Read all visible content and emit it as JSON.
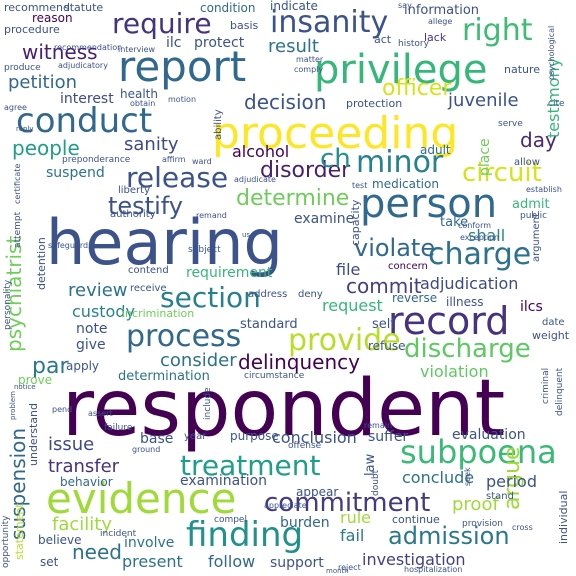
{
  "words": [
    {
      "t": "respondent",
      "c": "#440154"
    },
    {
      "t": "hearing",
      "c": "#3b528b"
    },
    {
      "t": "proceeding",
      "c": "#fde725"
    },
    {
      "t": "report",
      "c": "#31688e"
    },
    {
      "t": "privilege",
      "c": "#35b779"
    },
    {
      "t": "evidence",
      "c": "#a0da39"
    },
    {
      "t": "person",
      "c": "#31688e"
    },
    {
      "t": "record",
      "c": "#46327e"
    },
    {
      "t": "conduct",
      "c": "#31688e"
    },
    {
      "t": "finding",
      "c": "#21918c"
    },
    {
      "t": "subpoena",
      "c": "#3aba76"
    },
    {
      "t": "treatment",
      "c": "#1f9e89"
    },
    {
      "t": "require",
      "c": "#46327e"
    },
    {
      "t": "insanity",
      "c": "#3b528b"
    },
    {
      "t": "right",
      "c": "#3fbc73"
    },
    {
      "t": "provide",
      "c": "#b8de29"
    },
    {
      "t": "process",
      "c": "#31688e"
    },
    {
      "t": "section",
      "c": "#27808e"
    },
    {
      "t": "commitment",
      "c": "#443983"
    },
    {
      "t": "charge",
      "c": "#2c728e"
    },
    {
      "t": "minor",
      "c": "#26828e"
    },
    {
      "t": "release",
      "c": "#3b528b"
    },
    {
      "t": "discharge",
      "c": "#5ec962"
    },
    {
      "t": "admission",
      "c": "#2a788e"
    },
    {
      "t": "circuit",
      "c": "#d8e219"
    },
    {
      "t": "violate",
      "c": "#31688e"
    },
    {
      "t": "determine",
      "c": "#6ece58"
    },
    {
      "t": "testify",
      "c": "#3b528b"
    },
    {
      "t": "disorder",
      "c": "#481f70"
    },
    {
      "t": "ch",
      "c": "#21918c"
    },
    {
      "t": "people",
      "c": "#1f9e89"
    },
    {
      "t": "sanity",
      "c": "#3e4989"
    },
    {
      "t": "decision",
      "c": "#3b528b"
    },
    {
      "t": "officer",
      "c": "#d8e219"
    },
    {
      "t": "juvenile",
      "c": "#3b528b"
    },
    {
      "t": "commit",
      "c": "#424086"
    },
    {
      "t": "adjudication",
      "c": "#3e4989"
    },
    {
      "t": "delinquency",
      "c": "#440154"
    },
    {
      "t": "consider",
      "c": "#2c728e"
    },
    {
      "t": "review",
      "c": "#2c728e"
    },
    {
      "t": "custody",
      "c": "#26828e"
    },
    {
      "t": "witness",
      "c": "#481f70"
    },
    {
      "t": "petition",
      "c": "#31688e"
    },
    {
      "t": "psychiatrist",
      "c": "#6ece58"
    },
    {
      "t": "suspension",
      "c": "#31688e"
    },
    {
      "t": "par",
      "c": "#2a788e"
    },
    {
      "t": "issue",
      "c": "#3e4989"
    },
    {
      "t": "transfer",
      "c": "#46327e"
    },
    {
      "t": "facility",
      "c": "#9fda3a"
    },
    {
      "t": "need",
      "c": "#2c728e"
    },
    {
      "t": "argue",
      "c": "#a0da39"
    },
    {
      "t": "investigation",
      "c": "#424086"
    },
    {
      "t": "file",
      "c": "#3e4989"
    },
    {
      "t": "shall",
      "c": "#26828e"
    },
    {
      "t": "request",
      "c": "#35b779"
    },
    {
      "t": "day",
      "c": "#482878"
    },
    {
      "t": "testimony",
      "c": "#35b779"
    },
    {
      "t": "alcohol",
      "c": "#440154"
    },
    {
      "t": "interest",
      "c": "#3e4989"
    },
    {
      "t": "result",
      "c": "#2c728e"
    },
    {
      "t": "violation",
      "c": "#5ec962"
    },
    {
      "t": "conclusion",
      "c": "#3b528b"
    },
    {
      "t": "evaluation",
      "c": "#3b528b"
    },
    {
      "t": "period",
      "c": "#3b528b"
    },
    {
      "t": "conclude",
      "c": "#2c728e"
    },
    {
      "t": "proof",
      "c": "#9fda3a"
    },
    {
      "t": "rule",
      "c": "#9fda3a"
    },
    {
      "t": "fail",
      "c": "#2a788e"
    },
    {
      "t": "burden",
      "c": "#31688e"
    },
    {
      "t": "follow",
      "c": "#31688e"
    },
    {
      "t": "present",
      "c": "#2c728e"
    },
    {
      "t": "support",
      "c": "#3b528b"
    },
    {
      "t": "involve",
      "c": "#2c728e"
    },
    {
      "t": "examination",
      "c": "#3b528b"
    },
    {
      "t": "behavior",
      "c": "#31688e"
    },
    {
      "t": "base",
      "c": "#3b528b"
    },
    {
      "t": "reason",
      "c": "#440154"
    },
    {
      "t": "procedure",
      "c": "#3b528b"
    },
    {
      "t": "recommend",
      "c": "#3b528b"
    },
    {
      "t": "statute",
      "c": "#3b528b"
    },
    {
      "t": "condition",
      "c": "#31688e"
    },
    {
      "t": "indicate",
      "c": "#3b528b"
    },
    {
      "t": "information",
      "c": "#3b528b"
    },
    {
      "t": "ilc",
      "c": "#3b528b"
    },
    {
      "t": "protect",
      "c": "#3b528b"
    },
    {
      "t": "act",
      "c": "#3b528b"
    },
    {
      "t": "history",
      "c": "#3b528b"
    },
    {
      "t": "lack",
      "c": "#46327e"
    },
    {
      "t": "nature",
      "c": "#3b528b"
    },
    {
      "t": "place",
      "c": "#6ece58"
    },
    {
      "t": "allow",
      "c": "#3b528b"
    },
    {
      "t": "adult",
      "c": "#31688e"
    },
    {
      "t": "suspend",
      "c": "#2c728e"
    },
    {
      "t": "examine",
      "c": "#3b528b"
    },
    {
      "t": "take",
      "c": "#31688e"
    },
    {
      "t": "admit",
      "c": "#35b779"
    },
    {
      "t": "medication",
      "c": "#31688e"
    },
    {
      "t": "capacity",
      "c": "#3b528b"
    },
    {
      "t": "requirement",
      "c": "#35b779"
    },
    {
      "t": "detention",
      "c": "#3b528b"
    },
    {
      "t": "concern",
      "c": "#440154"
    },
    {
      "t": "reverse",
      "c": "#31688e"
    },
    {
      "t": "illness",
      "c": "#3b528b"
    },
    {
      "t": "ilcs",
      "c": "#440154"
    },
    {
      "t": "note",
      "c": "#3b528b"
    },
    {
      "t": "standard",
      "c": "#3b528b"
    },
    {
      "t": "self",
      "c": "#3b528b"
    },
    {
      "t": "refuse",
      "c": "#3b528b"
    },
    {
      "t": "give",
      "c": "#3b528b"
    },
    {
      "t": "apply",
      "c": "#3b528b"
    },
    {
      "t": "determination",
      "c": "#2c728e"
    },
    {
      "t": "prove",
      "c": "#6ece58"
    },
    {
      "t": "suffer",
      "c": "#3b528b"
    },
    {
      "t": "appear",
      "c": "#3b528b"
    },
    {
      "t": "stand",
      "c": "#3b528b"
    },
    {
      "t": "continue",
      "c": "#3b528b"
    },
    {
      "t": "law",
      "c": "#3b528b"
    },
    {
      "t": "understand",
      "c": "#3b528b"
    },
    {
      "t": "believe",
      "c": "#3b528b"
    },
    {
      "t": "set",
      "c": "#3b528b"
    },
    {
      "t": "individual",
      "c": "#3b528b"
    },
    {
      "t": "statement",
      "c": "#b8de29"
    },
    {
      "t": "opportunity",
      "c": "#3b528b"
    },
    {
      "t": "incrimination",
      "c": "#6ece58"
    },
    {
      "t": "contend",
      "c": "#3b528b"
    },
    {
      "t": "receive",
      "c": "#3b528b"
    },
    {
      "t": "address",
      "c": "#3b528b"
    },
    {
      "t": "deny",
      "c": "#3b528b"
    },
    {
      "t": "purpose",
      "c": "#3b528b"
    },
    {
      "t": "year",
      "c": "#3b528b"
    },
    {
      "t": "health",
      "c": "#3b528b"
    },
    {
      "t": "ability",
      "c": "#3b528b"
    },
    {
      "t": "preponderance",
      "c": "#3b528b"
    },
    {
      "t": "liberty",
      "c": "#3b528b"
    },
    {
      "t": "authority",
      "c": "#3b528b"
    },
    {
      "t": "subject",
      "c": "#3b528b"
    },
    {
      "t": "safeguard",
      "c": "#3b528b"
    },
    {
      "t": "remand",
      "c": "#3b528b"
    },
    {
      "t": "attempt",
      "c": "#3b528b"
    },
    {
      "t": "certificate",
      "c": "#3b528b"
    },
    {
      "t": "personality",
      "c": "#3b528b"
    },
    {
      "t": "weight",
      "c": "#3b528b"
    },
    {
      "t": "date",
      "c": "#3b528b"
    },
    {
      "t": "circumstance",
      "c": "#3b528b"
    },
    {
      "t": "failure",
      "c": "#3b528b"
    },
    {
      "t": "ground",
      "c": "#3b528b"
    },
    {
      "t": "compel",
      "c": "#3b528b"
    },
    {
      "t": "incident",
      "c": "#3b528b"
    },
    {
      "t": "offense",
      "c": "#3b528b"
    },
    {
      "t": "doubt",
      "c": "#3b528b"
    },
    {
      "t": "appreciate",
      "c": "#3b528b"
    },
    {
      "t": "provision",
      "c": "#3b528b"
    },
    {
      "t": "cross",
      "c": "#3b528b"
    },
    {
      "t": "reject",
      "c": "#3b528b"
    },
    {
      "t": "hospitalization",
      "c": "#3b528b"
    },
    {
      "t": "argument",
      "c": "#3b528b"
    },
    {
      "t": "public",
      "c": "#3b528b"
    },
    {
      "t": "establish",
      "c": "#3b528b"
    },
    {
      "t": "conform",
      "c": "#3b528b"
    },
    {
      "t": "exception",
      "c": "#3b528b"
    },
    {
      "t": "comply",
      "c": "#3b528b"
    },
    {
      "t": "matter",
      "c": "#3b528b"
    },
    {
      "t": "adjudicatory",
      "c": "#3b528b"
    },
    {
      "t": "produce",
      "c": "#3b528b"
    },
    {
      "t": "interview",
      "c": "#3b528b"
    },
    {
      "t": "recommendation",
      "c": "#3b528b"
    },
    {
      "t": "say",
      "c": "#3b528b"
    },
    {
      "t": "allege",
      "c": "#3b528b"
    },
    {
      "t": "basis",
      "c": "#3b528b"
    },
    {
      "t": "agree",
      "c": "#3b528b"
    },
    {
      "t": "obtain",
      "c": "#3b528b"
    },
    {
      "t": "motion",
      "c": "#3b528b"
    },
    {
      "t": "protection",
      "c": "#3b528b"
    },
    {
      "t": "serve",
      "c": "#3b528b"
    },
    {
      "t": "cite",
      "c": "#3b528b"
    },
    {
      "t": "affirm",
      "c": "#3b528b"
    },
    {
      "t": "ward",
      "c": "#3b528b"
    },
    {
      "t": "adjudicate",
      "c": "#3b528b"
    },
    {
      "t": "test",
      "c": "#3b528b"
    },
    {
      "t": "assert",
      "c": "#3b528b"
    },
    {
      "t": "pend",
      "c": "#3b528b"
    },
    {
      "t": "remain",
      "c": "#3b528b"
    },
    {
      "t": "include",
      "c": "#3b528b"
    },
    {
      "t": "delinquent",
      "c": "#3b528b"
    },
    {
      "t": "criminal",
      "c": "#3b528b"
    },
    {
      "t": "seek",
      "c": "#3b528b"
    },
    {
      "t": "psychological",
      "c": "#3b528b"
    },
    {
      "t": "notice",
      "c": "#3b528b"
    },
    {
      "t": "problem",
      "c": "#3b528b"
    },
    {
      "t": "reply",
      "c": "#3b528b"
    },
    {
      "t": "use",
      "c": "#3b528b"
    },
    {
      "t": "month",
      "c": "#3b528b"
    }
  ]
}
